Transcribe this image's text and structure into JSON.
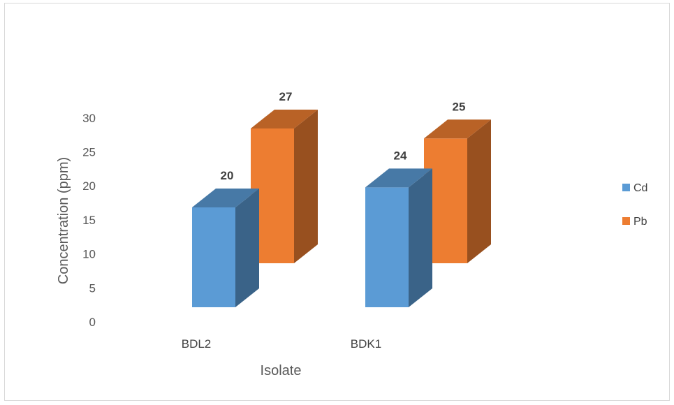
{
  "chart_data": {
    "type": "bar",
    "categories": [
      "BDL2",
      "BDK1"
    ],
    "series": [
      {
        "name": "Cd",
        "values": [
          20,
          24
        ],
        "color": "#5b9bd5"
      },
      {
        "name": "Pb",
        "values": [
          27,
          25
        ],
        "color": "#ed7d31"
      }
    ],
    "title": "",
    "xlabel": "Isolate",
    "ylabel": "Concentration (ppm)",
    "ylim": [
      0,
      30
    ],
    "yticks": [
      0,
      5,
      10,
      15,
      20,
      25,
      30
    ],
    "legend_position": "right",
    "grid": false,
    "style": "3d-column"
  }
}
